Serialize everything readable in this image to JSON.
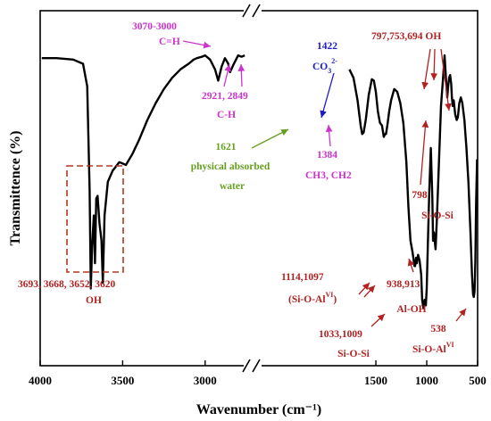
{
  "chart_data": {
    "type": "line",
    "title": "",
    "xlabel": "Wavenumber (cm⁻¹)",
    "ylabel": "Transmittence (%)",
    "xlim": [
      4000,
      500
    ],
    "x_axis_break": [
      2750,
      2650
    ],
    "xticks": [
      4000,
      3500,
      3000,
      1500,
      1000,
      500
    ],
    "xtick_labels": [
      "4000",
      "3500",
      "3000",
      "1500",
      "1000",
      "500"
    ],
    "grid": false,
    "legend": "none",
    "line_color": "#000000",
    "series": [
      {
        "values_note_free": true,
        "x": [
          3990,
          3900,
          3800,
          3740,
          3715,
          3700,
          3693,
          3685,
          3675,
          3668,
          3660,
          3652,
          3640,
          3628,
          3620,
          3610,
          3590,
          3560,
          3520,
          3480,
          3440,
          3400,
          3350,
          3300,
          3250,
          3200,
          3150,
          3100,
          3070,
          3050,
          3020,
          3000,
          2970,
          2940,
          2921,
          2900,
          2880,
          2860,
          2849,
          2830,
          2800,
          2780,
          2760,
          1760,
          1720,
          1680,
          1650,
          1635,
          1621,
          1600,
          1570,
          1540,
          1520,
          1500,
          1480,
          1460,
          1440,
          1422,
          1410,
          1400,
          1384,
          1370,
          1350,
          1320,
          1290,
          1260,
          1230,
          1200,
          1180,
          1160,
          1140,
          1120,
          1114,
          1105,
          1097,
          1085,
          1070,
          1055,
          1045,
          1033,
          1020,
          1009,
          1000,
          990,
          975,
          960,
          945,
          938,
          930,
          913,
          900,
          880,
          860,
          840,
          825,
          810,
          798,
          790,
          780,
          770,
          760,
          753,
          745,
          735,
          720,
          705,
          694,
          680,
          665,
          650,
          630,
          610,
          590,
          570,
          555,
          545,
          538,
          530,
          522,
          515,
          505
        ],
        "y": [
          0.92,
          0.92,
          0.915,
          0.9,
          0.82,
          0.45,
          0.1,
          0.25,
          0.36,
          0.19,
          0.42,
          0.43,
          0.33,
          0.27,
          0.12,
          0.36,
          0.48,
          0.52,
          0.55,
          0.54,
          0.58,
          0.63,
          0.7,
          0.76,
          0.81,
          0.85,
          0.88,
          0.9,
          0.915,
          0.92,
          0.925,
          0.93,
          0.915,
          0.88,
          0.84,
          0.89,
          0.92,
          0.9,
          0.87,
          0.895,
          0.93,
          0.925,
          0.93,
          0.88,
          0.85,
          0.77,
          0.68,
          0.65,
          0.655,
          0.7,
          0.79,
          0.845,
          0.84,
          0.8,
          0.73,
          0.69,
          0.68,
          0.64,
          0.65,
          0.65,
          0.69,
          0.73,
          0.77,
          0.81,
          0.8,
          0.76,
          0.69,
          0.55,
          0.39,
          0.27,
          0.23,
          0.18,
          0.18,
          0.21,
          0.19,
          0.22,
          0.2,
          0.15,
          0.06,
          0.03,
          0.06,
          0.04,
          0.1,
          0.25,
          0.45,
          0.6,
          0.42,
          0.27,
          0.3,
          0.24,
          0.35,
          0.55,
          0.75,
          0.85,
          0.93,
          0.84,
          0.78,
          0.82,
          0.85,
          0.86,
          0.83,
          0.78,
          0.75,
          0.77,
          0.72,
          0.7,
          0.71,
          0.76,
          0.78,
          0.76,
          0.7,
          0.6,
          0.48,
          0.3,
          0.15,
          0.08,
          0.07,
          0.09,
          0.2,
          0.4,
          0.56
        ]
      }
    ],
    "annotations": [
      {
        "id": "oh-3700",
        "lines": [
          "3693, 3668, 3652, 3620",
          "OH"
        ],
        "color": "#b22222"
      },
      {
        "id": "ch-stretch",
        "lines": [
          "3070-3000",
          "C=H"
        ],
        "color": "#cc33cc"
      },
      {
        "id": "ch-2900",
        "lines": [
          "2921, 2849",
          "C-H"
        ],
        "color": "#cc33cc"
      },
      {
        "id": "water",
        "lines": [
          "1621",
          "physical absorbed",
          "water"
        ],
        "color": "#66a020"
      },
      {
        "id": "co3",
        "text": "1422",
        "formula": {
          "base": "CO",
          "sub": "3",
          "sup": "2-"
        },
        "color": "#1a1acc"
      },
      {
        "id": "ch3",
        "lines": [
          "1384",
          "CH3, CH2"
        ],
        "color": "#cc33cc"
      },
      {
        "id": "oh-797",
        "lines": [
          "797,753,694 OH"
        ],
        "color": "#b22222"
      },
      {
        "id": "sio-798",
        "lines": [
          "798",
          "Si-O-Si"
        ],
        "color": "#b22222"
      },
      {
        "id": "sioal-1114",
        "lines": [
          "1114,1097"
        ],
        "formula": {
          "base": "(Si-O-Al",
          "sup": "VI",
          "tail": ")"
        },
        "color": "#b22222"
      },
      {
        "id": "sio-1033",
        "lines": [
          "1033,1009",
          "Si-O-Si"
        ],
        "color": "#b22222"
      },
      {
        "id": "aloh-938",
        "lines": [
          "938,913",
          "Al-OH"
        ],
        "color": "#b22222"
      },
      {
        "id": "sioal-538",
        "lines": [
          "538"
        ],
        "formula": {
          "base": "Si-O-Al",
          "sup": "VI"
        },
        "color": "#b22222"
      }
    ]
  }
}
